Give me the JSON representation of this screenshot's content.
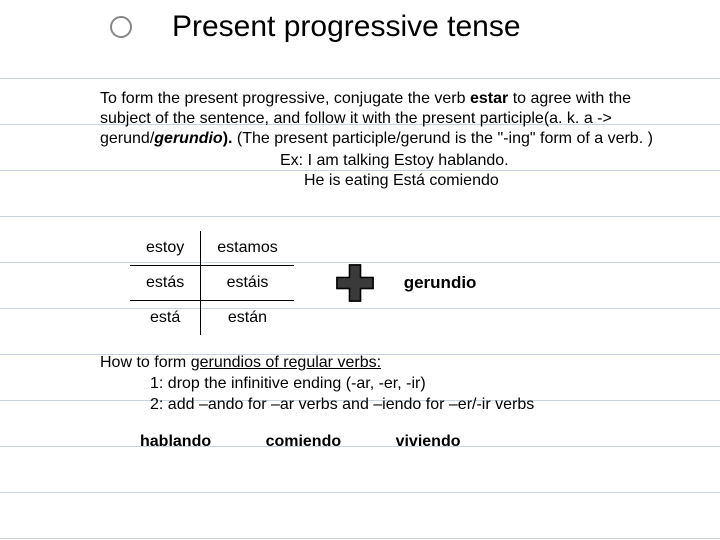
{
  "rule_lines": {
    "color": "#c8d4e0",
    "positions": [
      78,
      124,
      170,
      216,
      262,
      308,
      354,
      400,
      446,
      492,
      538
    ]
  },
  "title": {
    "bullet_border": "#888888",
    "text": "Present progressive tense",
    "fontsize": 30
  },
  "body": {
    "line1_a": "To form the present progressive, conjugate the verb ",
    "line1_b": "estar ",
    "line1_c": "to agree with the subject of the sentence, and follow it with the present participle(a. k. a -> gerund/",
    "line1_d": "gerundio",
    "line1_e": "). ",
    "line1_f": "(The present participle/gerund is the \"-ing\" form of a verb. )"
  },
  "examples": {
    "ex1_a": "Ex: I am talking ",
    "ex1_b": "Estoy hablando.",
    "ex2_a": "He is eating ",
    "ex2_b": "Está comiendo"
  },
  "conjugation": {
    "r1c1": "estoy",
    "r1c2": "estamos",
    "r2c1": "estás",
    "r2c2": "estáis",
    "r3c1": "está",
    "r3c2": "están"
  },
  "plus": {
    "fill": "#000000",
    "label": "gerundio"
  },
  "howto": {
    "intro_a": "How to form ",
    "intro_b": "gerundios",
    "intro_c": " of ",
    "intro_d": "regular",
    "intro_e": " verbs:",
    "step1": "1: drop the infinitive ending (-ar, -er, -ir)",
    "step2_a": "2: add ",
    "step2_b": "–ando",
    "step2_c": " for –ar verbs and ",
    "step2_d": "–iendo",
    "step2_e": " for –er/-ir verbs"
  },
  "gerunds": {
    "g1": "hablando",
    "g2": "comiendo",
    "g3": "viviendo"
  }
}
